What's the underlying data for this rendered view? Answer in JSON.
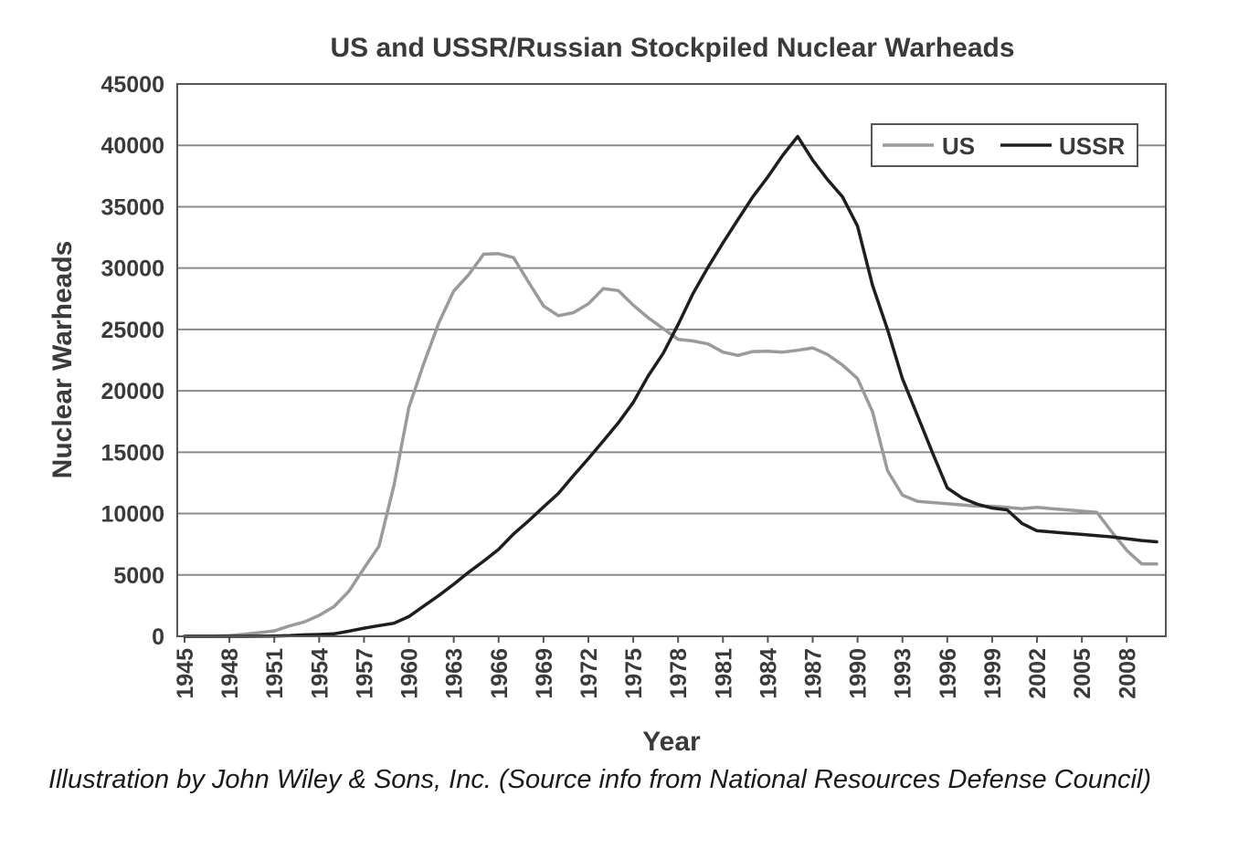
{
  "chart_data": {
    "type": "line",
    "title": "US and USSR/Russian Stockpiled Nuclear Warheads",
    "xlabel": "Year",
    "ylabel": "Nuclear Warheads",
    "xlim": [
      1945,
      2010
    ],
    "ylim": [
      0,
      45000
    ],
    "y_ticks": [
      0,
      5000,
      10000,
      15000,
      20000,
      25000,
      30000,
      35000,
      40000,
      45000
    ],
    "x_ticks": [
      1945,
      1948,
      1951,
      1954,
      1957,
      1960,
      1963,
      1966,
      1969,
      1972,
      1975,
      1978,
      1981,
      1984,
      1987,
      1990,
      1993,
      1996,
      1999,
      2002,
      2005,
      2008
    ],
    "grid": "horizontal",
    "legend_position": "top-right",
    "series": [
      {
        "name": "US",
        "color": "#9a9a9a",
        "x": [
          1945,
          1946,
          1947,
          1948,
          1949,
          1950,
          1951,
          1952,
          1953,
          1954,
          1955,
          1956,
          1957,
          1958,
          1959,
          1960,
          1961,
          1962,
          1963,
          1964,
          1965,
          1966,
          1967,
          1968,
          1969,
          1970,
          1971,
          1972,
          1973,
          1974,
          1975,
          1976,
          1977,
          1978,
          1979,
          1980,
          1981,
          1982,
          1983,
          1984,
          1985,
          1986,
          1987,
          1988,
          1989,
          1990,
          1991,
          1992,
          1993,
          1994,
          1995,
          1996,
          1997,
          1998,
          1999,
          2000,
          2001,
          2002,
          2003,
          2004,
          2005,
          2006,
          2007,
          2008,
          2009,
          2010
        ],
        "values": [
          2,
          9,
          13,
          50,
          170,
          299,
          438,
          841,
          1169,
          1703,
          2422,
          3692,
          5543,
          7345,
          12298,
          18638,
          22229,
          25540,
          28133,
          29463,
          31139,
          31175,
          30854,
          28863,
          26909,
          26119,
          26365,
          27087,
          28335,
          28170,
          26979,
          25956,
          25072,
          24193,
          24060,
          23822,
          23157,
          22889,
          23201,
          23223,
          23156,
          23300,
          23500,
          22950,
          22100,
          21000,
          18300,
          13500,
          11500,
          11000,
          10900,
          10800,
          10700,
          10600,
          10600,
          10500,
          10400,
          10500,
          10400,
          10300,
          10200,
          10100,
          8500,
          7000,
          5900,
          5900
        ]
      },
      {
        "name": "USSR",
        "color": "#1e1e1e",
        "x": [
          1945,
          1946,
          1947,
          1948,
          1949,
          1950,
          1951,
          1952,
          1953,
          1954,
          1955,
          1956,
          1957,
          1958,
          1959,
          1960,
          1961,
          1962,
          1963,
          1964,
          1965,
          1966,
          1967,
          1968,
          1969,
          1970,
          1971,
          1972,
          1973,
          1974,
          1975,
          1976,
          1977,
          1978,
          1979,
          1980,
          1981,
          1982,
          1983,
          1984,
          1985,
          1986,
          1987,
          1988,
          1989,
          1990,
          1991,
          1992,
          1993,
          1994,
          1995,
          1996,
          1997,
          1998,
          1999,
          2000,
          2001,
          2002,
          2003,
          2004,
          2005,
          2006,
          2007,
          2008,
          2009,
          2010
        ],
        "values": [
          0,
          0,
          0,
          0,
          1,
          5,
          25,
          50,
          120,
          150,
          200,
          426,
          660,
          869,
          1060,
          1605,
          2471,
          3322,
          4238,
          5221,
          6129,
          7089,
          8339,
          9399,
          10538,
          11643,
          13092,
          14478,
          15915,
          17385,
          19055,
          21205,
          23044,
          25393,
          27935,
          30062,
          32049,
          33952,
          35804,
          37431,
          39197,
          40723,
          38800,
          37200,
          35800,
          33417,
          28595,
          25000,
          21000,
          18000,
          14978,
          12085,
          11264,
          10764,
          10451,
          10300,
          9196,
          8600,
          8500,
          8400,
          8300,
          8200,
          8100,
          7950,
          7800,
          7700
        ]
      }
    ]
  },
  "caption": "Illustration by John Wiley & Sons, Inc. (Source info from National Resources Defense Council)"
}
